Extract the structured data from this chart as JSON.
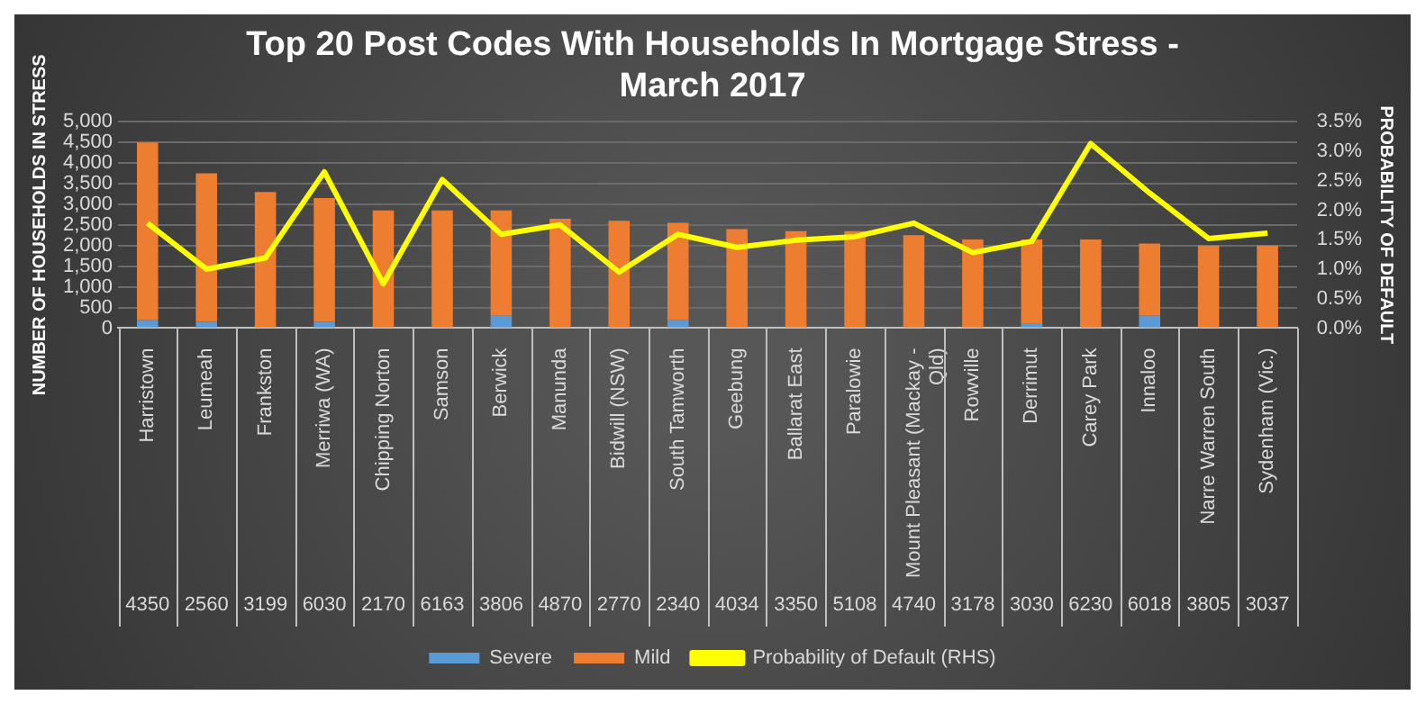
{
  "chart_data": {
    "type": "bar",
    "title": "Top 20 Post Codes With Households In Mortgage Stress - March 2017",
    "ylabel": "NUMBER OF HOUSEHOLDS IN STRESS",
    "y2label": "PROBABILITY OF DEFAULT",
    "categories": [
      "Harristown",
      "Leumeah",
      "Frankston",
      "Merriwa (WA)",
      "Chipping Norton",
      "Samson",
      "Berwick",
      "Manunda",
      "Bidwill (NSW)",
      "South Tamworth",
      "Geebung",
      "Ballarat East",
      "Paralowie",
      "Mount Pleasant (Mackay - Qld)",
      "Rowville",
      "Derrimut",
      "Carey Park",
      "Innaloo",
      "Narre Warren South",
      "Sydenham (Vic.)"
    ],
    "stacked": true,
    "series": [
      {
        "name": "Severe",
        "color": "#5b9bd5",
        "values": [
          200,
          150,
          0,
          150,
          0,
          0,
          300,
          0,
          0,
          200,
          0,
          0,
          0,
          0,
          0,
          100,
          0,
          300,
          0,
          0
        ]
      },
      {
        "name": "Mild",
        "color": "#ed7d31",
        "values": [
          4300,
          3600,
          3300,
          3000,
          2850,
          2850,
          2550,
          2650,
          2600,
          2350,
          2400,
          2350,
          2350,
          2250,
          2150,
          2050,
          2150,
          1750,
          2000,
          2000
        ]
      },
      {
        "name": "Probability of Default (RHS)",
        "type": "line",
        "axis": "y2",
        "color": "#ffff00",
        "values": [
          1.78,
          1.0,
          1.19,
          2.65,
          0.75,
          2.52,
          1.59,
          1.75,
          0.95,
          1.59,
          1.37,
          1.49,
          1.55,
          1.78,
          1.28,
          1.47,
          3.13,
          2.29,
          1.52,
          1.61
        ]
      }
    ],
    "ylim": [
      0,
      5000
    ],
    "yticks": [
      {
        "value": 0,
        "label": "0"
      },
      {
        "value": 500,
        "label": "500"
      },
      {
        "value": 1000,
        "label": "1,000"
      },
      {
        "value": 1500,
        "label": "1,500"
      },
      {
        "value": 2000,
        "label": "2,000"
      },
      {
        "value": 2500,
        "label": "2,500"
      },
      {
        "value": 3000,
        "label": "3,000"
      },
      {
        "value": 3500,
        "label": "3,500"
      },
      {
        "value": 4000,
        "label": "4,000"
      },
      {
        "value": 4500,
        "label": "4,500"
      },
      {
        "value": 5000,
        "label": "5,000"
      }
    ],
    "y2lim": [
      0,
      3.5
    ],
    "y2ticks": [
      {
        "value": 0,
        "label": "0.0%"
      },
      {
        "value": 0.5,
        "label": "0.5%"
      },
      {
        "value": 1,
        "label": "1.0%"
      },
      {
        "value": 1.5,
        "label": "1.5%"
      },
      {
        "value": 2,
        "label": "2.0%"
      },
      {
        "value": 2.5,
        "label": "2.5%"
      },
      {
        "value": 3,
        "label": "3.0%"
      },
      {
        "value": 3.5,
        "label": "3.5%"
      }
    ],
    "grid": "y",
    "legend": "bottom",
    "marker": "none",
    "line_style": "solid",
    "annotations": [
      "4350",
      "2560",
      "3199",
      "6030",
      "2170",
      "6163",
      "3806",
      "4870",
      "2770",
      "2340",
      "4034",
      "3350",
      "5108",
      "4740",
      "3178",
      "3030",
      "6230",
      "6018",
      "3805",
      "3037"
    ]
  }
}
